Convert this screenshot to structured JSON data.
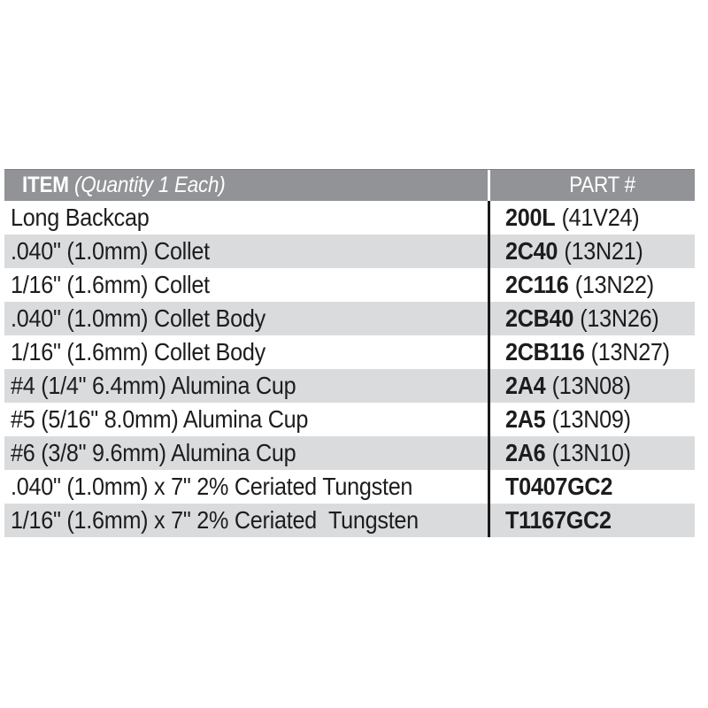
{
  "table": {
    "header": {
      "item_label": "ITEM",
      "item_note": "(Quantity 1 Each)",
      "part_label": "PART #"
    },
    "rows": [
      {
        "item": "Long Backcap",
        "part_code": "200L",
        "part_ref": "(41V24)"
      },
      {
        "item": ".040\" (1.0mm) Collet",
        "part_code": "2C40",
        "part_ref": "(13N21)"
      },
      {
        "item": "1/16\" (1.6mm) Collet",
        "part_code": "2C116",
        "part_ref": "(13N22)"
      },
      {
        "item": ".040\" (1.0mm) Collet Body",
        "part_code": "2CB40",
        "part_ref": "(13N26)"
      },
      {
        "item": "1/16\" (1.6mm) Collet Body",
        "part_code": "2CB116",
        "part_ref": "(13N27)"
      },
      {
        "item": "#4 (1/4\" 6.4mm) Alumina Cup",
        "part_code": "2A4",
        "part_ref": "(13N08)"
      },
      {
        "item": "#5 (5/16\" 8.0mm) Alumina Cup",
        "part_code": "2A5",
        "part_ref": "(13N09)"
      },
      {
        "item": "#6 (3/8\" 9.6mm) Alumina Cup",
        "part_code": "2A6",
        "part_ref": "(13N10)"
      },
      {
        "item": ".040\" (1.0mm) x 7\" 2% Ceriated Tungsten",
        "part_code": "T0407GC2",
        "part_ref": ""
      },
      {
        "item": "1/16\" (1.6mm) x 7\" 2% Ceriated  Tungsten",
        "part_code": "T1167GC2",
        "part_ref": ""
      }
    ],
    "colors": {
      "header_bg": "#919396",
      "header_text": "#ffffff",
      "row_bg": "#ffffff",
      "row_alt_bg": "#dadbdd",
      "text": "#1d1d1f",
      "divider": "#1a1a1a"
    }
  }
}
